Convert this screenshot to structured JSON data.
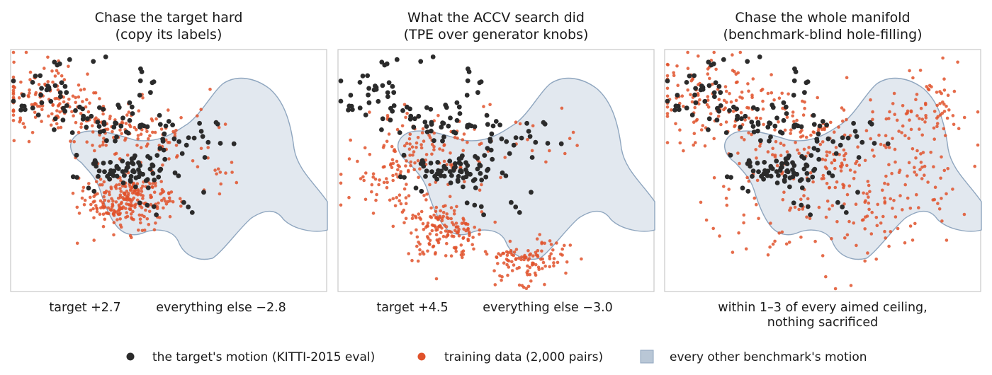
{
  "chart_data": [
    {
      "type": "scatter",
      "title": [
        "Chase the target hard",
        "(copy its labels)"
      ],
      "captions": [
        "target +2.7",
        "everything else −2.8"
      ]
    },
    {
      "type": "scatter",
      "title": [
        "What the ACCV search did",
        "(TPE over generator knobs)"
      ],
      "captions": [
        "target +4.5",
        "everything else −3.0"
      ]
    },
    {
      "type": "scatter",
      "title": [
        "Chase the whole manifold",
        "(benchmark-blind hole-filling)"
      ],
      "captions": [
        "within 1–3 of every aimed ceiling,",
        "nothing sacrificed"
      ]
    }
  ],
  "legend": [
    {
      "label": "the target's motion (KITTI-2015 eval)",
      "color": "#2b2b2b",
      "marker": "dot"
    },
    {
      "label": "training data (2,000 pairs)",
      "color": "#e0522b",
      "marker": "dot"
    },
    {
      "label": "every other benchmark's motion",
      "color": "#b9c7d6",
      "marker": "square"
    }
  ],
  "colors": {
    "target": "#2b2b2b",
    "training": "#e0522b",
    "manifold_fill": "#e2e8ef",
    "manifold_edge": "#8fa6bf",
    "frame": "#c8c8c8"
  }
}
